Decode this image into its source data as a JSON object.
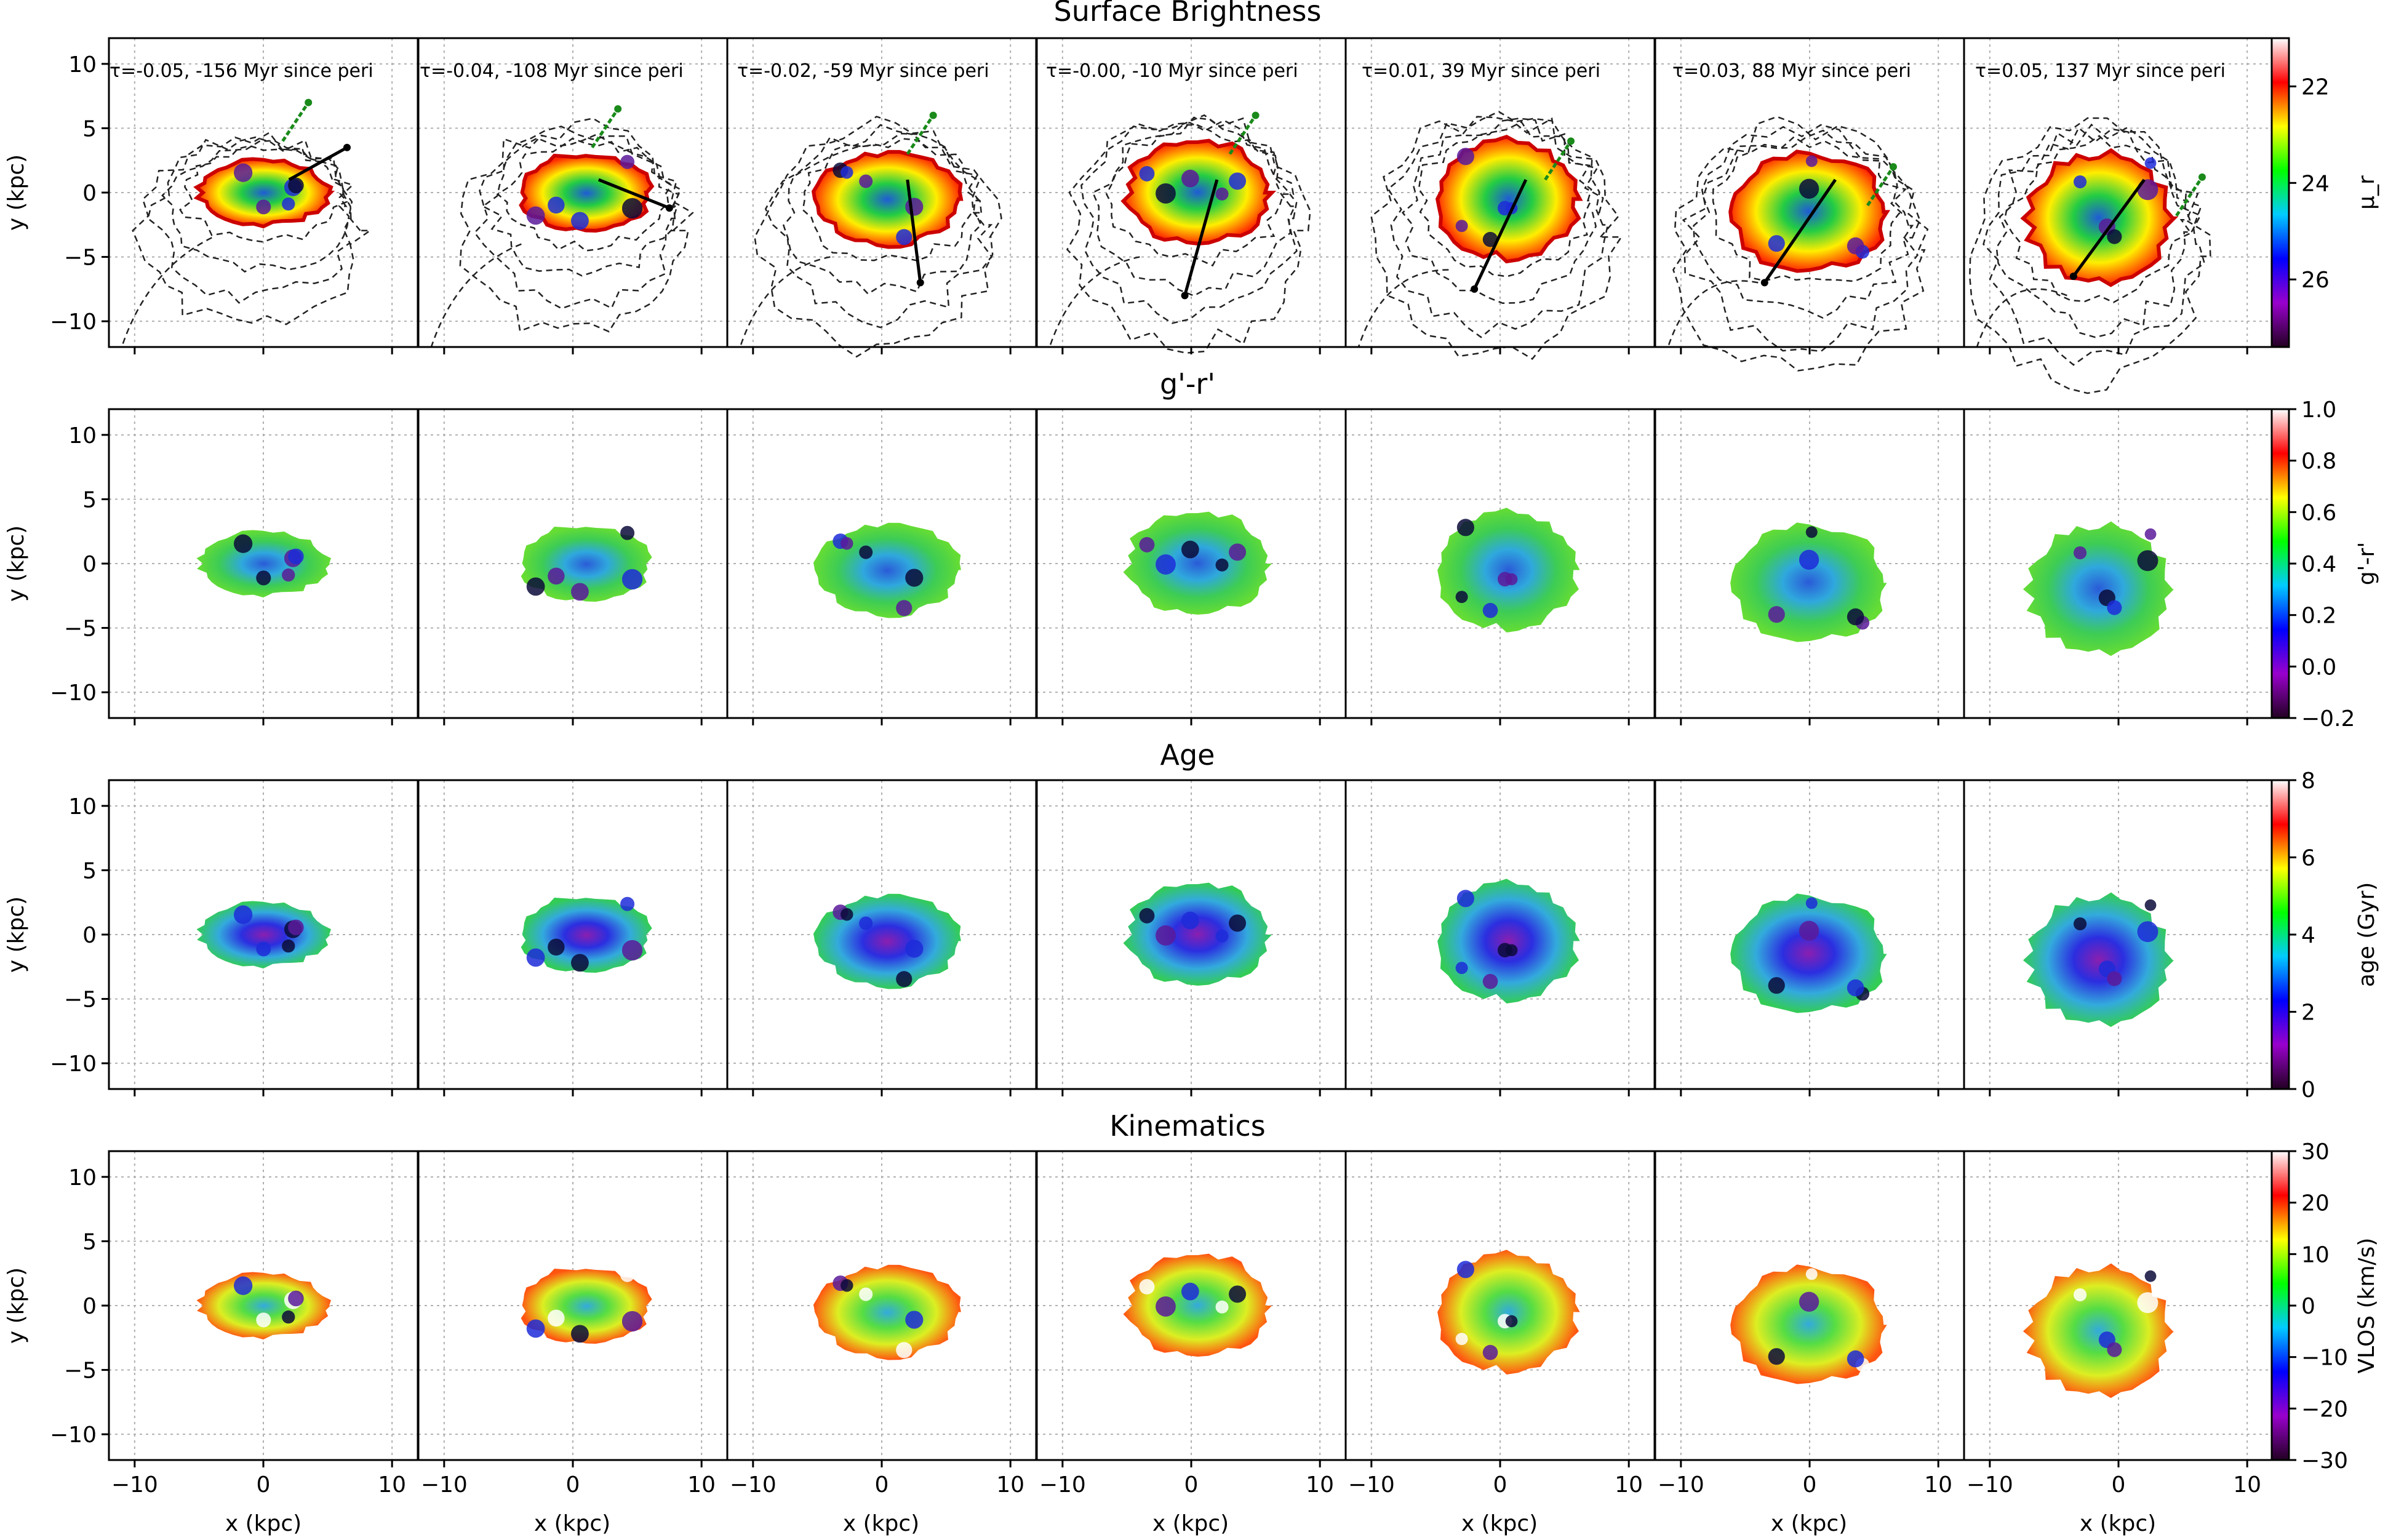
{
  "figure": {
    "row_titles": [
      "Surface Brightness",
      "g'-r'",
      "Age",
      "Kinematics"
    ],
    "panel_titles": [
      "τ=-0.05, -156 Myr since peri",
      "τ=-0.04, -108 Myr since peri",
      "τ=-0.02, -59 Myr since peri",
      "τ=-0.00, -10 Myr since peri",
      "τ=0.01, 39 Myr since peri",
      "τ=0.03, 88 Myr since peri",
      "τ=0.05, 137 Myr since peri"
    ],
    "xlabel": "x (kpc)",
    "ylabel": "y (kpc)"
  },
  "chart_data": {
    "type": "heatmap",
    "xlim": [
      -12,
      12
    ],
    "ylim": [
      -12,
      12
    ],
    "x_ticks": [
      -10,
      0,
      10
    ],
    "y_ticks": [
      10,
      5,
      0,
      -5,
      -10
    ],
    "grid": true,
    "rows": [
      {
        "quantity": "Surface Brightness",
        "colorbar_label": "μ_r",
        "colorbar_ticks": [
          22,
          24,
          26
        ],
        "colorbar_range": [
          21,
          27.4
        ],
        "reversed": true,
        "colormap": [
          "#ffffff",
          "#ff0000",
          "#ffff00",
          "#00ff00",
          "#00ccff",
          "#0000ff",
          "#9900cc",
          "#220022"
        ],
        "overlay": "contours + direction arrows"
      },
      {
        "quantity": "g'-r'",
        "colorbar_label": "g'-r'",
        "colorbar_ticks": [
          1.0,
          0.8,
          0.6,
          0.4,
          0.2,
          0.0,
          -0.2
        ],
        "colorbar_range": [
          -0.2,
          1.0
        ],
        "colormap": [
          "#ffffff",
          "#ff0000",
          "#ffff00",
          "#00ff00",
          "#00ccff",
          "#0000ff",
          "#9900cc",
          "#220022"
        ]
      },
      {
        "quantity": "Age",
        "colorbar_label": "age (Gyr)",
        "colorbar_ticks": [
          8,
          6,
          4,
          2,
          0
        ],
        "colorbar_range": [
          0,
          8
        ],
        "colormap": [
          "#ffffff",
          "#ff0000",
          "#ffff00",
          "#00ff00",
          "#00ccff",
          "#0000ff",
          "#9900cc",
          "#220022"
        ]
      },
      {
        "quantity": "Kinematics",
        "colorbar_label": "VLOS (km/s)",
        "colorbar_ticks": [
          30,
          20,
          10,
          0,
          -10,
          -20,
          -30
        ],
        "colorbar_range": [
          -30,
          30
        ],
        "colormap": [
          "#ffffff",
          "#ff0000",
          "#ffff00",
          "#00ff00",
          "#00ccff",
          "#0000ff",
          "#9900cc",
          "#220022"
        ]
      }
    ],
    "snapshots": [
      {
        "tau": -0.05,
        "myr_since_peri": -156,
        "galaxy_extent": {
          "x": [
            -5,
            5
          ],
          "y": [
            -2.5,
            2.5
          ]
        },
        "sb_motion_arrow": [
          6.5,
          3.5
        ],
        "green_arrow": [
          3.5,
          7
        ]
      },
      {
        "tau": -0.04,
        "myr_since_peri": -108,
        "galaxy_extent": {
          "x": [
            -4,
            6
          ],
          "y": [
            -3,
            3
          ]
        },
        "sb_motion_arrow": [
          7.5,
          -1.2
        ],
        "green_arrow": [
          3.5,
          6.5
        ]
      },
      {
        "tau": -0.02,
        "myr_since_peri": -59,
        "galaxy_extent": {
          "x": [
            -5,
            6
          ],
          "y": [
            -4,
            3
          ]
        },
        "sb_motion_arrow": [
          3,
          -7
        ],
        "green_arrow": [
          4,
          6
        ]
      },
      {
        "tau": -0.0,
        "myr_since_peri": -10,
        "galaxy_extent": {
          "x": [
            -5,
            6
          ],
          "y": [
            -4,
            4
          ]
        },
        "sb_motion_arrow": [
          -0.5,
          -8
        ],
        "green_arrow": [
          5,
          6
        ]
      },
      {
        "tau": 0.01,
        "myr_since_peri": 39,
        "galaxy_extent": {
          "x": [
            -5,
            6
          ],
          "y": [
            -5,
            4
          ]
        },
        "sb_motion_arrow": [
          -2,
          -7.5
        ],
        "green_arrow": [
          5.5,
          4
        ]
      },
      {
        "tau": 0.03,
        "myr_since_peri": 88,
        "galaxy_extent": {
          "x": [
            -6,
            6
          ],
          "y": [
            -6,
            3
          ]
        },
        "sb_motion_arrow": [
          -3.5,
          -7
        ],
        "green_arrow": [
          6.5,
          2
        ]
      },
      {
        "tau": 0.05,
        "myr_since_peri": 137,
        "galaxy_extent": {
          "x": [
            -7,
            4
          ],
          "y": [
            -7,
            3
          ]
        },
        "sb_motion_arrow": [
          -3.5,
          -6.5
        ],
        "green_arrow": [
          6.5,
          1.2
        ]
      }
    ]
  }
}
